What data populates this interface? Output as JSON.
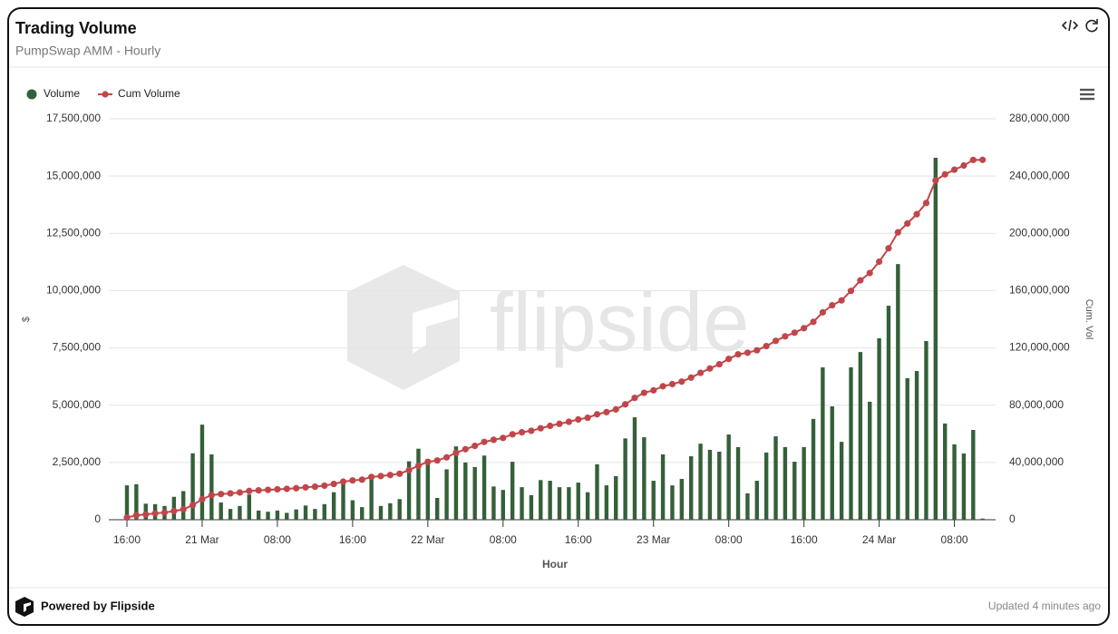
{
  "chart_data": {
    "type": "bar",
    "title": "Trading Volume",
    "subtitle": "PumpSwap AMM - Hourly",
    "xlabel": "Hour",
    "ylabel": "$",
    "y2label": "Cum. Vol",
    "watermark": "flipside",
    "footer": "Powered by Flipside",
    "updated": "Updated 4 minutes ago",
    "legend": "top-left",
    "grid": true,
    "x": [
      "20 Mar 16:00",
      "20 Mar 17:00",
      "20 Mar 18:00",
      "20 Mar 19:00",
      "20 Mar 20:00",
      "20 Mar 21:00",
      "20 Mar 22:00",
      "20 Mar 23:00",
      "21 Mar 00:00",
      "21 Mar 01:00",
      "21 Mar 02:00",
      "21 Mar 03:00",
      "21 Mar 04:00",
      "21 Mar 05:00",
      "21 Mar 06:00",
      "21 Mar 07:00",
      "21 Mar 08:00",
      "21 Mar 09:00",
      "21 Mar 10:00",
      "21 Mar 11:00",
      "21 Mar 12:00",
      "21 Mar 13:00",
      "21 Mar 14:00",
      "21 Mar 15:00",
      "21 Mar 16:00",
      "21 Mar 17:00",
      "21 Mar 18:00",
      "21 Mar 19:00",
      "21 Mar 20:00",
      "21 Mar 21:00",
      "21 Mar 22:00",
      "21 Mar 23:00",
      "22 Mar 00:00",
      "22 Mar 01:00",
      "22 Mar 02:00",
      "22 Mar 03:00",
      "22 Mar 04:00",
      "22 Mar 05:00",
      "22 Mar 06:00",
      "22 Mar 07:00",
      "22 Mar 08:00",
      "22 Mar 09:00",
      "22 Mar 10:00",
      "22 Mar 11:00",
      "22 Mar 12:00",
      "22 Mar 13:00",
      "22 Mar 14:00",
      "22 Mar 15:00",
      "22 Mar 16:00",
      "22 Mar 17:00",
      "22 Mar 18:00",
      "22 Mar 19:00",
      "22 Mar 20:00",
      "22 Mar 21:00",
      "22 Mar 22:00",
      "22 Mar 23:00",
      "23 Mar 00:00",
      "23 Mar 01:00",
      "23 Mar 02:00",
      "23 Mar 03:00",
      "23 Mar 04:00",
      "23 Mar 05:00",
      "23 Mar 06:00",
      "23 Mar 07:00",
      "23 Mar 08:00",
      "23 Mar 09:00",
      "23 Mar 10:00",
      "23 Mar 11:00",
      "23 Mar 12:00",
      "23 Mar 13:00",
      "23 Mar 14:00",
      "23 Mar 15:00",
      "23 Mar 16:00",
      "23 Mar 17:00",
      "23 Mar 18:00",
      "23 Mar 19:00",
      "23 Mar 20:00",
      "23 Mar 21:00",
      "23 Mar 22:00",
      "23 Mar 23:00",
      "24 Mar 00:00",
      "24 Mar 01:00",
      "24 Mar 02:00",
      "24 Mar 03:00",
      "24 Mar 04:00",
      "24 Mar 05:00",
      "24 Mar 06:00",
      "24 Mar 07:00",
      "24 Mar 08:00",
      "24 Mar 09:00",
      "24 Mar 10:00",
      "24 Mar 11:00"
    ],
    "xticks": [
      {
        "value": "20 Mar 16:00",
        "label": "16:00"
      },
      {
        "value": "21 Mar 00:00",
        "label": "21 Mar"
      },
      {
        "value": "21 Mar 08:00",
        "label": "08:00"
      },
      {
        "value": "21 Mar 16:00",
        "label": "16:00"
      },
      {
        "value": "22 Mar 00:00",
        "label": "22 Mar"
      },
      {
        "value": "22 Mar 08:00",
        "label": "08:00"
      },
      {
        "value": "22 Mar 16:00",
        "label": "16:00"
      },
      {
        "value": "23 Mar 00:00",
        "label": "23 Mar"
      },
      {
        "value": "23 Mar 08:00",
        "label": "08:00"
      },
      {
        "value": "23 Mar 16:00",
        "label": "16:00"
      },
      {
        "value": "24 Mar 00:00",
        "label": "24 Mar"
      },
      {
        "value": "24 Mar 08:00",
        "label": "08:00"
      }
    ],
    "ylim": [
      0,
      17500000
    ],
    "yticks": [
      0,
      {
        "value": 2500000,
        "label": "2,500,000"
      },
      {
        "value": 5000000,
        "label": "5,000,000"
      },
      {
        "value": 7500000,
        "label": "7,500,000"
      },
      {
        "value": 10000000,
        "label": "10,000,000"
      },
      {
        "value": 12500000,
        "label": "12,500,000"
      },
      {
        "value": 15000000,
        "label": "15,000,000"
      },
      {
        "value": 17500000,
        "label": "17,500,000"
      }
    ],
    "y2lim": [
      0,
      280000000
    ],
    "y2ticks": [
      0,
      {
        "value": 40000000,
        "label": "40,000,000"
      },
      {
        "value": 80000000,
        "label": "80,000,000"
      },
      {
        "value": 120000000,
        "label": "120,000,000"
      },
      {
        "value": 160000000,
        "label": "160,000,000"
      },
      {
        "value": 200000000,
        "label": "200,000,000"
      },
      {
        "value": 240000000,
        "label": "240,000,000"
      },
      {
        "value": 280000000,
        "label": "280,000,000"
      }
    ],
    "series": [
      {
        "name": "Volume",
        "type": "bar",
        "color": "#35603a",
        "values": [
          1500000,
          1550000,
          700000,
          680000,
          600000,
          1000000,
          1250000,
          2900000,
          4150000,
          2850000,
          750000,
          470000,
          600000,
          1100000,
          400000,
          350000,
          400000,
          300000,
          450000,
          620000,
          470000,
          680000,
          1200000,
          1620000,
          850000,
          550000,
          1900000,
          600000,
          720000,
          900000,
          2550000,
          3100000,
          2650000,
          950000,
          2200000,
          3200000,
          2500000,
          2300000,
          2800000,
          1450000,
          1300000,
          2530000,
          1420000,
          1070000,
          1730000,
          1700000,
          1420000,
          1420000,
          1620000,
          1200000,
          2420000,
          1500000,
          1900000,
          3550000,
          4470000,
          3600000,
          1700000,
          2850000,
          1500000,
          1780000,
          2770000,
          3320000,
          3050000,
          2970000,
          3720000,
          3170000,
          1150000,
          1700000,
          2930000,
          3640000,
          3170000,
          2530000,
          3170000,
          4400000,
          6650000,
          4950000,
          3400000,
          6650000,
          7320000,
          5150000,
          7920000,
          9340000,
          11160000,
          6180000,
          6490000,
          7800000,
          15800000,
          4200000,
          3290000,
          2890000,
          3920000,
          50000
        ]
      },
      {
        "name": "Cum Volume",
        "type": "line",
        "axis": "y2",
        "color": "#c0464a",
        "values": [
          1500000,
          3050000,
          3750000,
          4430000,
          5030000,
          6030000,
          7280000,
          10180000,
          14330000,
          17180000,
          17930000,
          18400000,
          19000000,
          20100000,
          20500000,
          20850000,
          21250000,
          21550000,
          22000000,
          22620000,
          23090000,
          23770000,
          24970000,
          26590000,
          27440000,
          27990000,
          29890000,
          30490000,
          31210000,
          32110000,
          34660000,
          37760000,
          40410000,
          41360000,
          43560000,
          46760000,
          49260000,
          51560000,
          54360000,
          55810000,
          57110000,
          59640000,
          61060000,
          62130000,
          63860000,
          65560000,
          66980000,
          68400000,
          70020000,
          71220000,
          73640000,
          75140000,
          77040000,
          80590000,
          85060000,
          88660000,
          90360000,
          93210000,
          94710000,
          96490000,
          99260000,
          102580000,
          105630000,
          108600000,
          112320000,
          115490000,
          116640000,
          118340000,
          121270000,
          124910000,
          128080000,
          130610000,
          133780000,
          138180000,
          144830000,
          149780000,
          153180000,
          159830000,
          167150000,
          172300000,
          180220000,
          189560000,
          200720000,
          206900000,
          213390000,
          221190000,
          236990000,
          241190000,
          244480000,
          247370000,
          251290000,
          251340000
        ]
      }
    ]
  }
}
